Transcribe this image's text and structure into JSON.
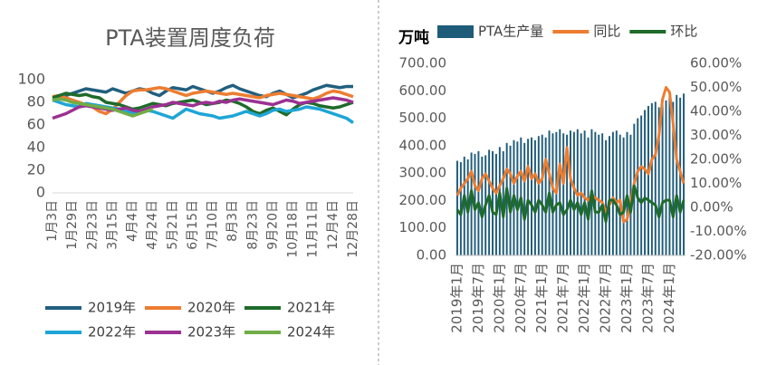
{
  "chart_data": [
    {
      "type": "line",
      "title": "PTA装置周度负荷",
      "categories": [
        "1月3日",
        null,
        null,
        "1月29日",
        null,
        null,
        "2月23日",
        null,
        null,
        "3月15日",
        null,
        null,
        "4月4日",
        null,
        null,
        "4月24日",
        null,
        null,
        "5月21日",
        null,
        null,
        "6月15日",
        null,
        null,
        "7月10日",
        null,
        null,
        "8月3日",
        null,
        null,
        "8月23日",
        null,
        null,
        "9月20日",
        null,
        null,
        "10月18日",
        null,
        null,
        "11月11日",
        null,
        null,
        "12月4日",
        null,
        null,
        "12月28日"
      ],
      "ylim": [
        0,
        100
      ],
      "yticks": [
        0,
        20,
        40,
        60,
        80,
        100
      ],
      "legend": "bottom",
      "series": [
        {
          "name": "2019年",
          "color": "#215f7f",
          "values": [
            82,
            84,
            86,
            88,
            90,
            92,
            91,
            90,
            89,
            92,
            90,
            88,
            90,
            92,
            91,
            88,
            86,
            90,
            93,
            92,
            91,
            94,
            92,
            90,
            88,
            90,
            93,
            95,
            92,
            90,
            88,
            86,
            85,
            88,
            90,
            87,
            84,
            86,
            88,
            91,
            93,
            95,
            94,
            93,
            94,
            94
          ]
        },
        {
          "name": "2020年",
          "color": "#ed7d31",
          "values": [
            85,
            86,
            84,
            82,
            80,
            78,
            76,
            72,
            70,
            74,
            80,
            86,
            90,
            91,
            91,
            92,
            93,
            92,
            90,
            88,
            86,
            88,
            89,
            90,
            89,
            88,
            87,
            88,
            87,
            86,
            85,
            84,
            86,
            87,
            88,
            87,
            86,
            85,
            84,
            83,
            85,
            88,
            90,
            89,
            87,
            85
          ]
        },
        {
          "name": "2021年",
          "color": "#1e6b2a",
          "values": [
            84,
            86,
            88,
            87,
            86,
            87,
            85,
            84,
            80,
            79,
            78,
            76,
            74,
            75,
            77,
            79,
            78,
            77,
            79,
            80,
            81,
            82,
            80,
            78,
            79,
            80,
            82,
            81,
            79,
            76,
            72,
            70,
            73,
            75,
            72,
            69,
            74,
            78,
            80,
            79,
            77,
            76,
            75,
            76,
            78,
            80
          ]
        },
        {
          "name": "2022年",
          "color": "#1ea5d6",
          "values": [
            82,
            80,
            78,
            77,
            76,
            79,
            78,
            77,
            76,
            75,
            74,
            72,
            71,
            72,
            73,
            72,
            70,
            68,
            66,
            70,
            74,
            72,
            70,
            69,
            68,
            66,
            67,
            68,
            70,
            72,
            70,
            68,
            70,
            73,
            74,
            72,
            73,
            74,
            76,
            75,
            74,
            72,
            70,
            68,
            66,
            62
          ]
        },
        {
          "name": "2023年",
          "color": "#9b3192",
          "values": [
            66,
            68,
            70,
            73,
            76,
            77,
            76,
            75,
            74,
            73,
            74,
            75,
            73,
            72,
            74,
            76,
            77,
            78,
            80,
            79,
            78,
            77,
            79,
            80,
            79,
            81,
            80,
            82,
            83,
            82,
            81,
            80,
            79,
            78,
            80,
            82,
            81,
            79,
            80,
            81,
            82,
            83,
            84,
            83,
            82,
            80
          ]
        },
        {
          "name": "2024年",
          "color": "#70ad47",
          "values": [
            82,
            83,
            82,
            80,
            79,
            78,
            77,
            76,
            75,
            74,
            72,
            70,
            68,
            70,
            72,
            74,
            null,
            null,
            null,
            null,
            null,
            null,
            null,
            null,
            null,
            null,
            null,
            null,
            null,
            null,
            null,
            null,
            null,
            null,
            null,
            null,
            null,
            null,
            null,
            null,
            null,
            null,
            null,
            null,
            null,
            null
          ]
        }
      ]
    },
    {
      "type": "bar",
      "ylabel": "万吨",
      "legend": "top",
      "categories": [
        "2019年1月",
        null,
        null,
        null,
        null,
        null,
        "2019年7月",
        null,
        null,
        null,
        null,
        null,
        "2020年1月",
        null,
        null,
        null,
        null,
        null,
        "2020年7月",
        null,
        null,
        null,
        null,
        null,
        "2021年1月",
        null,
        null,
        null,
        null,
        null,
        "2021年7月",
        null,
        null,
        null,
        null,
        null,
        "2022年1月",
        null,
        null,
        null,
        null,
        null,
        "2022年7月",
        null,
        null,
        null,
        null,
        null,
        "2023年1月",
        null,
        null,
        null,
        null,
        null,
        "2023年7月",
        null,
        null,
        null,
        null,
        null,
        "2024年1月",
        null,
        null,
        null,
        null
      ],
      "ylim": [
        0,
        700
      ],
      "yticks": [
        {
          "value": 0,
          "label": "0.00"
        },
        {
          "value": 100,
          "label": "100.00"
        },
        {
          "value": 200,
          "label": "200.00"
        },
        {
          "value": 300,
          "label": "300.00"
        },
        {
          "value": 400,
          "label": "400.00"
        },
        {
          "value": 500,
          "label": "500.00"
        },
        {
          "value": 600,
          "label": "600.00"
        },
        {
          "value": 700,
          "label": "700.00"
        }
      ],
      "y2lim": [
        -20,
        60
      ],
      "y2ticks": [
        {
          "value": -20,
          "label": "-20.00%"
        },
        {
          "value": -10,
          "label": "-10.00%"
        },
        {
          "value": 0,
          "label": "0.00%"
        },
        {
          "value": 10,
          "label": "10.00%"
        },
        {
          "value": 20,
          "label": "20.00%"
        },
        {
          "value": 30,
          "label": "30.00%"
        },
        {
          "value": 40,
          "label": "40.00%"
        },
        {
          "value": 50,
          "label": "50.00%"
        },
        {
          "value": 60,
          "label": "60.00%"
        }
      ],
      "series": [
        {
          "name": "PTA生产量",
          "type": "bar",
          "color": "#1f5c7a",
          "values": [
            345,
            340,
            360,
            350,
            375,
            370,
            380,
            360,
            365,
            385,
            380,
            370,
            395,
            380,
            410,
            400,
            420,
            415,
            430,
            410,
            425,
            430,
            420,
            435,
            440,
            430,
            455,
            445,
            450,
            460,
            445,
            440,
            455,
            450,
            460,
            445,
            455,
            430,
            460,
            450,
            440,
            445,
            420,
            435,
            450,
            455,
            440,
            430,
            450,
            440,
            480,
            500,
            510,
            530,
            545,
            555,
            560,
            540,
            550,
            565,
            580,
            560,
            585,
            575,
            590
          ]
        },
        {
          "name": "同比",
          "type": "line",
          "axis": "y2",
          "color": "#ed7d31",
          "values": [
            5,
            8,
            10,
            12,
            15,
            9,
            7,
            12,
            14,
            11,
            8,
            6,
            9,
            12,
            16,
            14,
            10,
            13,
            15,
            11,
            17,
            12,
            14,
            10,
            12,
            20,
            14,
            8,
            6,
            18,
            10,
            25,
            12,
            8,
            5,
            6,
            4,
            3,
            5,
            4,
            3,
            2,
            -2,
            1,
            4,
            2,
            3,
            -6,
            -5,
            2,
            10,
            15,
            17,
            16,
            14,
            20,
            22,
            30,
            45,
            50,
            48,
            35,
            20,
            15,
            10
          ]
        },
        {
          "name": "环比",
          "type": "line",
          "axis": "y2",
          "color": "#1e6b2a",
          "values": [
            -1,
            -3,
            5,
            -2,
            7,
            -1,
            2,
            -4,
            1,
            5,
            -2,
            -3,
            6,
            -4,
            8,
            -2,
            5,
            -1,
            4,
            -5,
            3,
            1,
            -2,
            3,
            1,
            -2,
            6,
            -2,
            1,
            2,
            -3,
            -1,
            3,
            -1,
            2,
            -3,
            2,
            -5,
            7,
            -2,
            -2,
            1,
            -6,
            3,
            3,
            1,
            -3,
            -2,
            5,
            -2,
            9,
            4,
            2,
            4,
            3,
            2,
            1,
            -4,
            2,
            3,
            3,
            -4,
            5,
            -2,
            3
          ]
        }
      ]
    }
  ]
}
